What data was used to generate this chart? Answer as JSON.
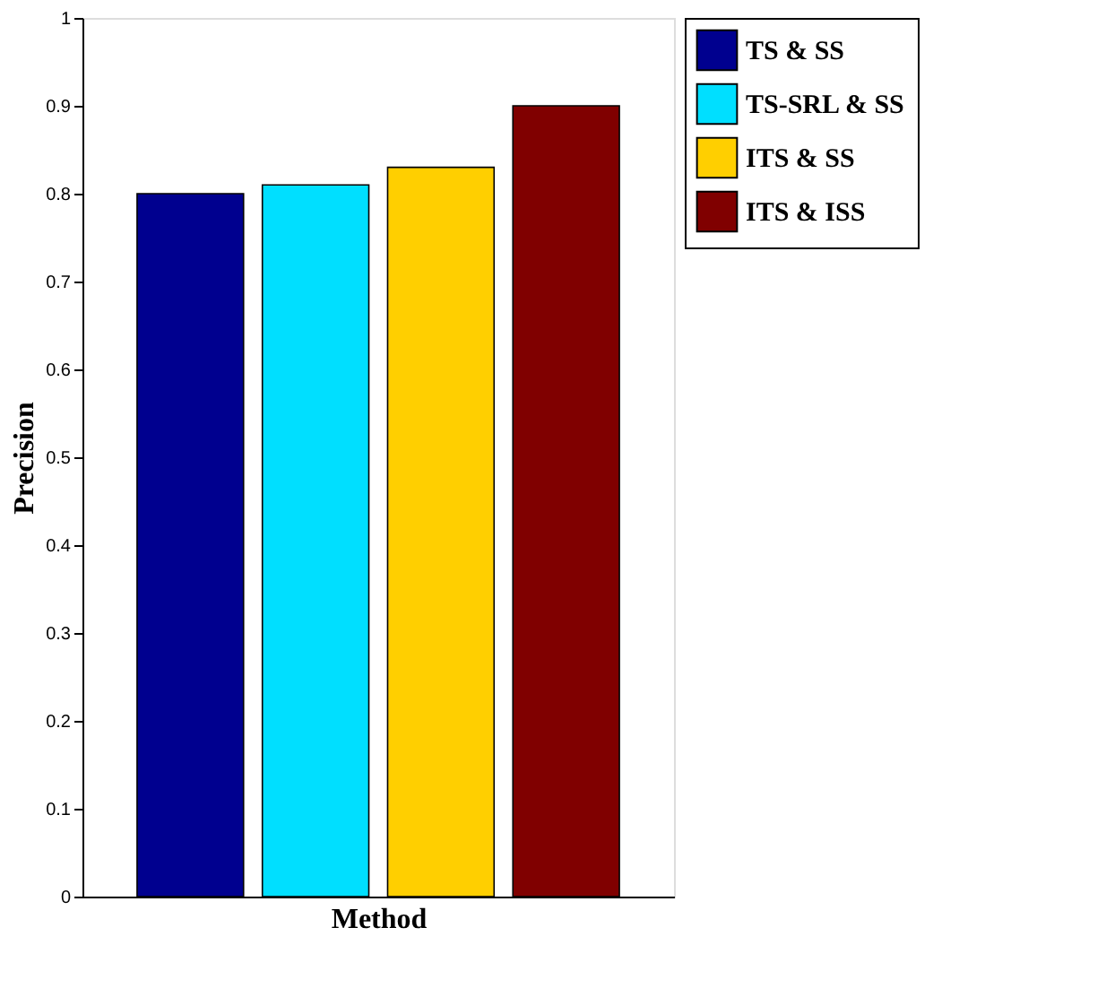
{
  "chart_data": {
    "type": "bar",
    "xlabel": "Method",
    "ylabel": "Precision",
    "categories": [
      null
    ],
    "series": [
      {
        "name": "TS & SS",
        "color": "#00008f",
        "values": [
          0.8
        ]
      },
      {
        "name": "TS-SRL & SS",
        "color": "#00dfff",
        "values": [
          0.81
        ]
      },
      {
        "name": "ITS & SS",
        "color": "#ffcf00",
        "values": [
          0.83
        ]
      },
      {
        "name": "ITS & ISS",
        "color": "#800000",
        "values": [
          0.9
        ]
      }
    ],
    "ylim": [
      0,
      1
    ],
    "yticks": [
      0,
      0.1,
      0.2,
      0.3,
      0.4,
      0.5,
      0.6,
      0.7,
      0.8,
      0.9,
      1
    ],
    "grid": false,
    "legend": "right"
  }
}
